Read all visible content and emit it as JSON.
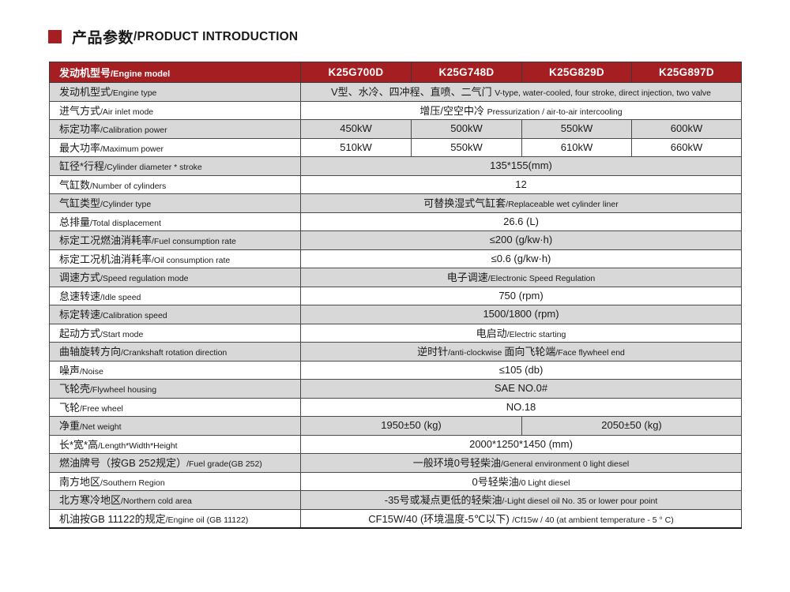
{
  "page": {
    "title_cn": "产品参数",
    "title_en": "/PRODUCT INTRODUCTION",
    "accent_color": "#a41e22",
    "shade_color": "#d8d8d8"
  },
  "table": {
    "header": {
      "label": [
        [
          "lg",
          "发动机型号"
        ],
        [
          "sm",
          "/Engine model"
        ]
      ],
      "models": [
        "K25G700D",
        "K25G748D",
        "K25G829D",
        "K25G897D"
      ]
    },
    "rows": [
      {
        "label": [
          [
            "lg",
            "发动机型式"
          ],
          [
            "sm",
            "/Engine type"
          ]
        ],
        "cells": [
          {
            "span": 4,
            "parts": [
              [
                "lg",
                "V型、水冷、四冲程、直喷、二气门 "
              ],
              [
                "sm",
                "V-type, water-cooled, four stroke, direct injection, two valve"
              ]
            ]
          }
        ]
      },
      {
        "label": [
          [
            "lg",
            "进气方式"
          ],
          [
            "sm",
            "/Air inlet mode"
          ]
        ],
        "cells": [
          {
            "span": 4,
            "parts": [
              [
                "lg",
                "增压/空空中冷 "
              ],
              [
                "sm",
                "Pressurization / air-to-air intercooling"
              ]
            ]
          }
        ]
      },
      {
        "label": [
          [
            "lg",
            "标定功率"
          ],
          [
            "sm",
            "/Calibration power"
          ]
        ],
        "cells": [
          {
            "span": 1,
            "parts": [
              [
                "lg",
                "450kW"
              ]
            ]
          },
          {
            "span": 1,
            "parts": [
              [
                "lg",
                "500kW"
              ]
            ]
          },
          {
            "span": 1,
            "parts": [
              [
                "lg",
                "550kW"
              ]
            ]
          },
          {
            "span": 1,
            "parts": [
              [
                "lg",
                "600kW"
              ]
            ]
          }
        ]
      },
      {
        "label": [
          [
            "lg",
            "最大功率"
          ],
          [
            "sm",
            "/Maximum power"
          ]
        ],
        "cells": [
          {
            "span": 1,
            "parts": [
              [
                "lg",
                "510kW"
              ]
            ]
          },
          {
            "span": 1,
            "parts": [
              [
                "lg",
                "550kW"
              ]
            ]
          },
          {
            "span": 1,
            "parts": [
              [
                "lg",
                "610kW"
              ]
            ]
          },
          {
            "span": 1,
            "parts": [
              [
                "lg",
                "660kW"
              ]
            ]
          }
        ]
      },
      {
        "label": [
          [
            "lg",
            "缸径*行程"
          ],
          [
            "sm",
            "/Cylinder diameter * stroke"
          ]
        ],
        "cells": [
          {
            "span": 4,
            "parts": [
              [
                "lg",
                "135*155(mm)"
              ]
            ]
          }
        ]
      },
      {
        "label": [
          [
            "lg",
            "气缸数"
          ],
          [
            "sm",
            "/Number of cylinders"
          ]
        ],
        "cells": [
          {
            "span": 4,
            "parts": [
              [
                "lg",
                "12"
              ]
            ]
          }
        ]
      },
      {
        "label": [
          [
            "lg",
            "气缸类型"
          ],
          [
            "sm",
            "/Cylinder type"
          ]
        ],
        "cells": [
          {
            "span": 4,
            "parts": [
              [
                "lg",
                "可替换湿式气缸套"
              ],
              [
                "sm",
                "/Replaceable wet cylinder liner"
              ]
            ]
          }
        ]
      },
      {
        "label": [
          [
            "lg",
            "总排量"
          ],
          [
            "sm",
            "/Total displacement"
          ]
        ],
        "cells": [
          {
            "span": 4,
            "parts": [
              [
                "lg",
                "26.6 (L)"
              ]
            ]
          }
        ]
      },
      {
        "label": [
          [
            "lg",
            "标定工况燃油消耗率"
          ],
          [
            "sm",
            "/Fuel consumption rate"
          ]
        ],
        "cells": [
          {
            "span": 4,
            "parts": [
              [
                "lg",
                "≤200 (g/kw·h)"
              ]
            ]
          }
        ]
      },
      {
        "label": [
          [
            "lg",
            "标定工况机油消耗率"
          ],
          [
            "sm",
            "/Oil consumption rate"
          ]
        ],
        "cells": [
          {
            "span": 4,
            "parts": [
              [
                "lg",
                "≤0.6 (g/kw·h)"
              ]
            ]
          }
        ]
      },
      {
        "label": [
          [
            "lg",
            "调速方式"
          ],
          [
            "sm",
            "/Speed regulation mode"
          ]
        ],
        "cells": [
          {
            "span": 4,
            "parts": [
              [
                "lg",
                "电子调速"
              ],
              [
                "sm",
                "/Electronic Speed Regulation"
              ]
            ]
          }
        ]
      },
      {
        "label": [
          [
            "lg",
            "怠速转速"
          ],
          [
            "sm",
            "/Idle speed"
          ]
        ],
        "cells": [
          {
            "span": 4,
            "parts": [
              [
                "lg",
                "750 (rpm)"
              ]
            ]
          }
        ]
      },
      {
        "label": [
          [
            "lg",
            "标定转速"
          ],
          [
            "sm",
            "/Calibration speed"
          ]
        ],
        "cells": [
          {
            "span": 4,
            "parts": [
              [
                "lg",
                "1500/1800 (rpm)"
              ]
            ]
          }
        ]
      },
      {
        "label": [
          [
            "lg",
            "起动方式"
          ],
          [
            "sm",
            "/Start mode"
          ]
        ],
        "cells": [
          {
            "span": 4,
            "parts": [
              [
                "lg",
                "电启动"
              ],
              [
                "sm",
                "/Electric starting"
              ]
            ]
          }
        ]
      },
      {
        "label": [
          [
            "lg",
            "曲轴旋转方向"
          ],
          [
            "sm",
            "/Crankshaft rotation direction"
          ]
        ],
        "cells": [
          {
            "span": 4,
            "parts": [
              [
                "lg",
                "逆时针"
              ],
              [
                "sm",
                "/anti-clockwise "
              ],
              [
                "lg",
                "面向飞轮端"
              ],
              [
                "sm",
                "/Face flywheel end"
              ]
            ]
          }
        ]
      },
      {
        "label": [
          [
            "lg",
            "噪声"
          ],
          [
            "sm",
            "/Noise"
          ]
        ],
        "cells": [
          {
            "span": 4,
            "parts": [
              [
                "lg",
                "≤105 (db)"
              ]
            ]
          }
        ]
      },
      {
        "label": [
          [
            "lg",
            "飞轮壳"
          ],
          [
            "sm",
            "/Flywheel housing"
          ]
        ],
        "cells": [
          {
            "span": 4,
            "parts": [
              [
                "lg",
                "SAE NO.0#"
              ]
            ]
          }
        ]
      },
      {
        "label": [
          [
            "lg",
            "飞轮"
          ],
          [
            "sm",
            "/Free wheel"
          ]
        ],
        "cells": [
          {
            "span": 4,
            "parts": [
              [
                "lg",
                "NO.18"
              ]
            ]
          }
        ]
      },
      {
        "label": [
          [
            "lg",
            "净重"
          ],
          [
            "sm",
            "/Net weight"
          ]
        ],
        "cells": [
          {
            "span": 2,
            "parts": [
              [
                "lg",
                "1950±50 (kg)"
              ]
            ]
          },
          {
            "span": 2,
            "parts": [
              [
                "lg",
                "2050±50 (kg)"
              ]
            ]
          }
        ]
      },
      {
        "label": [
          [
            "lg",
            "长*宽*高"
          ],
          [
            "sm",
            "/Length*Width*Height"
          ]
        ],
        "cells": [
          {
            "span": 4,
            "parts": [
              [
                "lg",
                "2000*1250*1450 (mm)"
              ]
            ]
          }
        ]
      },
      {
        "label": [
          [
            "lg",
            "燃油牌号（按GB 252规定）"
          ],
          [
            "sm",
            "/Fuel grade(GB 252)"
          ]
        ],
        "cells": [
          {
            "span": 4,
            "parts": [
              [
                "lg",
                "一般环境0号轻柴油"
              ],
              [
                "sm",
                "/General environment 0 light diesel"
              ]
            ]
          }
        ]
      },
      {
        "label": [
          [
            "lg",
            "南方地区"
          ],
          [
            "sm",
            "/Southern Region"
          ]
        ],
        "cells": [
          {
            "span": 4,
            "parts": [
              [
                "lg",
                "0号轻柴油"
              ],
              [
                "sm",
                "/0 Light diesel"
              ]
            ]
          }
        ]
      },
      {
        "label": [
          [
            "lg",
            "北方寒冷地区"
          ],
          [
            "sm",
            "/Northern cold area"
          ]
        ],
        "cells": [
          {
            "span": 4,
            "parts": [
              [
                "lg",
                "-35号或凝点更低的轻柴油"
              ],
              [
                "sm",
                "/-Light diesel oil No. 35 or lower pour point"
              ]
            ]
          }
        ]
      },
      {
        "label": [
          [
            "lg",
            "机油按GB 11122的规定"
          ],
          [
            "sm",
            "/Engine oil (GB 11122)"
          ]
        ],
        "cells": [
          {
            "span": 4,
            "parts": [
              [
                "lg",
                "CF15W/40 (环境温度-5℃以下) "
              ],
              [
                "sm",
                "/Cf15w / 40 (at ambient temperature - 5 ° C)"
              ]
            ]
          }
        ]
      }
    ]
  }
}
